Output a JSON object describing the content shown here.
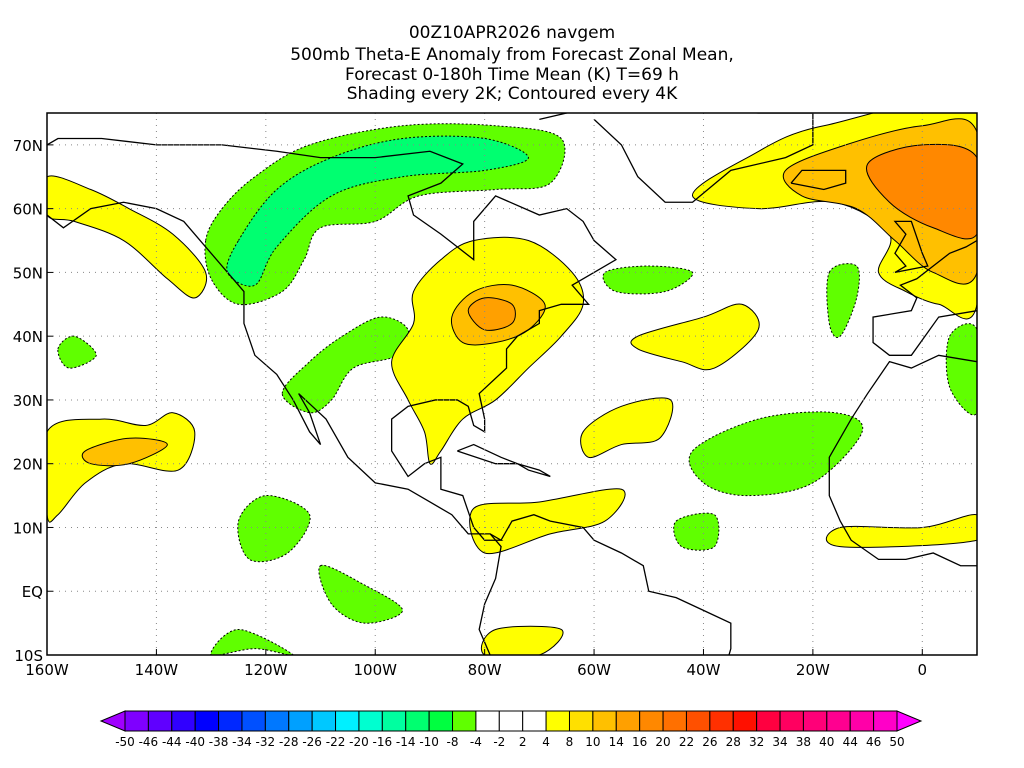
{
  "title": {
    "line1": "00Z10APR2026 navgem",
    "line2": "500mb Theta-E Anomaly from Forecast Zonal Mean,",
    "line3": "Forecast 0-180h Time Mean (K) T=69 h",
    "line4": "Shading every 2K; Contoured every 4K"
  },
  "chart_data": {
    "type": "heatmap",
    "variable": "500mb Theta-E Anomaly (K)",
    "xlim": [
      -160,
      10
    ],
    "ylim": [
      -10,
      75
    ],
    "grid": true,
    "x_ticks": [
      {
        "v": -160,
        "label": "160W"
      },
      {
        "v": -140,
        "label": "140W"
      },
      {
        "v": -120,
        "label": "120W"
      },
      {
        "v": -100,
        "label": "100W"
      },
      {
        "v": -80,
        "label": "80W"
      },
      {
        "v": -60,
        "label": "60W"
      },
      {
        "v": -40,
        "label": "40W"
      },
      {
        "v": -20,
        "label": "20W"
      },
      {
        "v": 0,
        "label": "0"
      }
    ],
    "y_ticks": [
      {
        "v": -10,
        "label": "10S"
      },
      {
        "v": 0,
        "label": "EQ"
      },
      {
        "v": 10,
        "label": "10N"
      },
      {
        "v": 20,
        "label": "20N"
      },
      {
        "v": 30,
        "label": "30N"
      },
      {
        "v": 40,
        "label": "40N"
      },
      {
        "v": 50,
        "label": "50N"
      },
      {
        "v": 60,
        "label": "60N"
      },
      {
        "v": 70,
        "label": "70N"
      }
    ],
    "colorbar": {
      "labels": [
        "-50",
        "-46",
        "-44",
        "-40",
        "-38",
        "-34",
        "-32",
        "-28",
        "-26",
        "-22",
        "-20",
        "-16",
        "-14",
        "-10",
        "-8",
        "-4",
        "-2",
        "2",
        "4",
        "8",
        "10",
        "14",
        "16",
        "20",
        "22",
        "26",
        "28",
        "32",
        "34",
        "38",
        "40",
        "44",
        "46",
        "50"
      ],
      "colors": [
        "#7f00ff",
        "#6000ff",
        "#3000ff",
        "#0000ff",
        "#0028ff",
        "#0050ff",
        "#0078ff",
        "#00a0ff",
        "#00c8ff",
        "#00f0ff",
        "#00ffd0",
        "#00ffa0",
        "#00ff70",
        "#00ff40",
        "#60ff00",
        "#ffffff",
        "#ffffff",
        "#ffffff",
        "#ffff00",
        "#ffe000",
        "#ffc000",
        "#ffa000",
        "#ff8800",
        "#ff7000",
        "#ff5000",
        "#ff3000",
        "#ff1000",
        "#ff0040",
        "#ff0060",
        "#ff0078",
        "#ff0090",
        "#ff00a8",
        "#ff00c8"
      ],
      "low_color": "#a000ff",
      "high_color": "#ff00ff"
    },
    "regions": [
      {
        "name": "canada-negative",
        "color": "#60ff00",
        "pts": [
          [
            -131,
            55
          ],
          [
            -128,
            60
          ],
          [
            -122,
            65
          ],
          [
            -112,
            70
          ],
          [
            -95,
            73
          ],
          [
            -78,
            73
          ],
          [
            -66,
            71
          ],
          [
            -68,
            64
          ],
          [
            -78,
            63
          ],
          [
            -92,
            62
          ],
          [
            -100,
            58
          ],
          [
            -110,
            57
          ],
          [
            -113,
            52
          ],
          [
            -117,
            47
          ],
          [
            -125,
            45
          ],
          [
            -130,
            49
          ]
        ]
      },
      {
        "name": "canada-negative-core",
        "color": "#00ff70",
        "pts": [
          [
            -125,
            55
          ],
          [
            -118,
            63
          ],
          [
            -108,
            68
          ],
          [
            -95,
            71
          ],
          [
            -80,
            71
          ],
          [
            -72,
            68
          ],
          [
            -80,
            66
          ],
          [
            -95,
            65
          ],
          [
            -108,
            62
          ],
          [
            -118,
            54
          ],
          [
            -122,
            48
          ],
          [
            -127,
            50
          ]
        ]
      },
      {
        "name": "alaska-gulf-positive",
        "color": "#ffff00",
        "pts": [
          [
            -160,
            65
          ],
          [
            -152,
            63
          ],
          [
            -145,
            60
          ],
          [
            -137,
            56
          ],
          [
            -131,
            50
          ],
          [
            -133,
            46
          ],
          [
            -138,
            49
          ],
          [
            -146,
            55
          ],
          [
            -155,
            58
          ],
          [
            -160,
            59
          ]
        ]
      },
      {
        "name": "central-us-negative",
        "color": "#60ff00",
        "pts": [
          [
            -117,
            31
          ],
          [
            -112,
            36
          ],
          [
            -106,
            40
          ],
          [
            -99,
            43
          ],
          [
            -94,
            41
          ],
          [
            -96,
            37
          ],
          [
            -104,
            35
          ],
          [
            -108,
            30
          ],
          [
            -112,
            28
          ]
        ]
      },
      {
        "name": "east-us-positive",
        "color": "#ffff00",
        "pts": [
          [
            -88,
            52
          ],
          [
            -82,
            55
          ],
          [
            -72,
            55
          ],
          [
            -64,
            50
          ],
          [
            -62,
            45
          ],
          [
            -66,
            40
          ],
          [
            -72,
            35
          ],
          [
            -78,
            30
          ],
          [
            -84,
            27
          ],
          [
            -88,
            22
          ],
          [
            -90,
            20
          ],
          [
            -91,
            25
          ],
          [
            -94,
            30
          ],
          [
            -97,
            36
          ],
          [
            -93,
            42
          ],
          [
            -93,
            47
          ]
        ]
      },
      {
        "name": "great-lakes-positive-core",
        "color": "#ffc000",
        "pts": [
          [
            -86,
            43
          ],
          [
            -82,
            47
          ],
          [
            -75,
            48
          ],
          [
            -69,
            45
          ],
          [
            -72,
            41
          ],
          [
            -78,
            39
          ],
          [
            -84,
            39
          ]
        ]
      },
      {
        "name": "great-lakes-positive-max",
        "color": "#ffa000",
        "pts": [
          [
            -83,
            44
          ],
          [
            -80,
            46
          ],
          [
            -75,
            45
          ],
          [
            -75,
            42
          ],
          [
            -80,
            41
          ]
        ]
      },
      {
        "name": "europe-positive",
        "color": "#ffff00",
        "pts": [
          [
            -42,
            62
          ],
          [
            -32,
            68
          ],
          [
            -18,
            73
          ],
          [
            10,
            75
          ],
          [
            10,
            45
          ],
          [
            3,
            45
          ],
          [
            -3,
            47
          ],
          [
            -8,
            50
          ],
          [
            -6,
            56
          ],
          [
            -16,
            61
          ],
          [
            -30,
            60
          ]
        ]
      },
      {
        "name": "europe-positive-core",
        "color": "#ffc000",
        "pts": [
          [
            -25,
            66
          ],
          [
            -14,
            70
          ],
          [
            0,
            73
          ],
          [
            10,
            72
          ],
          [
            10,
            50
          ],
          [
            2,
            50
          ],
          [
            -5,
            55
          ],
          [
            -12,
            60
          ],
          [
            -22,
            62
          ]
        ]
      },
      {
        "name": "europe-positive-max",
        "color": "#ff8800",
        "pts": [
          [
            -10,
            67
          ],
          [
            0,
            70
          ],
          [
            10,
            68
          ],
          [
            10,
            56
          ],
          [
            2,
            57
          ],
          [
            -6,
            61
          ]
        ]
      },
      {
        "name": "pacific-positive",
        "color": "#ffff00",
        "pts": [
          [
            -160,
            25
          ],
          [
            -150,
            27
          ],
          [
            -142,
            26
          ],
          [
            -137,
            28
          ],
          [
            -133,
            25
          ],
          [
            -136,
            19
          ],
          [
            -146,
            20
          ],
          [
            -153,
            17
          ],
          [
            -158,
            12
          ],
          [
            -160,
            12
          ]
        ]
      },
      {
        "name": "pacific-positive-core",
        "color": "#ffc000",
        "pts": [
          [
            -153,
            22
          ],
          [
            -145,
            24
          ],
          [
            -138,
            23
          ],
          [
            -145,
            20
          ],
          [
            -152,
            20
          ]
        ]
      },
      {
        "name": "atlantic-negative",
        "color": "#60ff00",
        "pts": [
          [
            -58,
            50
          ],
          [
            -50,
            51
          ],
          [
            -42,
            50
          ],
          [
            -47,
            47
          ],
          [
            -56,
            47
          ]
        ]
      },
      {
        "name": "atlantic-positive-north",
        "color": "#ffff00",
        "pts": [
          [
            -52,
            40
          ],
          [
            -40,
            43
          ],
          [
            -33,
            45
          ],
          [
            -30,
            41
          ],
          [
            -38,
            35
          ],
          [
            -44,
            36
          ],
          [
            -52,
            38
          ]
        ]
      },
      {
        "name": "atlantic-positive-south",
        "color": "#ffff00",
        "pts": [
          [
            -62,
            25
          ],
          [
            -55,
            29
          ],
          [
            -46,
            30
          ],
          [
            -48,
            24
          ],
          [
            -55,
            23
          ],
          [
            -61,
            21
          ]
        ]
      },
      {
        "name": "africa-coast-negative",
        "color": "#60ff00",
        "pts": [
          [
            -42,
            22
          ],
          [
            -30,
            27
          ],
          [
            -16,
            28
          ],
          [
            -11,
            25
          ],
          [
            -20,
            17
          ],
          [
            -32,
            15
          ],
          [
            -40,
            17
          ]
        ]
      },
      {
        "name": "iberia-negative",
        "color": "#60ff00",
        "pts": [
          [
            -17,
            50
          ],
          [
            -12,
            51
          ],
          [
            -12,
            46
          ],
          [
            -15,
            40
          ],
          [
            -17,
            42
          ]
        ]
      },
      {
        "name": "med-negative",
        "color": "#60ff00",
        "pts": [
          [
            5,
            40
          ],
          [
            10,
            41
          ],
          [
            10,
            28
          ],
          [
            5,
            32
          ]
        ]
      },
      {
        "name": "caribbean-positive",
        "color": "#ffff00",
        "pts": [
          [
            -82,
            13
          ],
          [
            -70,
            14
          ],
          [
            -55,
            16
          ],
          [
            -58,
            11
          ],
          [
            -68,
            9
          ],
          [
            -80,
            6
          ]
        ]
      },
      {
        "name": "west-africa-positive",
        "color": "#ffff00",
        "pts": [
          [
            -15,
            10
          ],
          [
            0,
            10
          ],
          [
            10,
            12
          ],
          [
            10,
            8
          ],
          [
            -15,
            7
          ]
        ]
      },
      {
        "name": "pacific-negative-1",
        "color": "#60ff00",
        "pts": [
          [
            -125,
            11
          ],
          [
            -120,
            15
          ],
          [
            -112,
            12
          ],
          [
            -116,
            6
          ],
          [
            -123,
            5
          ]
        ]
      },
      {
        "name": "pacific-negative-2",
        "color": "#60ff00",
        "pts": [
          [
            -110,
            4
          ],
          [
            -102,
            1
          ],
          [
            -95,
            -3
          ],
          [
            -102,
            -5
          ],
          [
            -108,
            -2
          ]
        ]
      },
      {
        "name": "pacific-negative-3",
        "color": "#60ff00",
        "pts": [
          [
            -130,
            -10
          ],
          [
            -122,
            -9
          ],
          [
            -115,
            -10
          ],
          [
            -125,
            -6
          ]
        ]
      },
      {
        "name": "pacific-negative-4",
        "color": "#60ff00",
        "pts": [
          [
            -158,
            38
          ],
          [
            -155,
            40
          ],
          [
            -151,
            37
          ],
          [
            -156,
            35
          ]
        ]
      },
      {
        "name": "atlantic-negative-2",
        "color": "#60ff00",
        "pts": [
          [
            -45,
            11
          ],
          [
            -38,
            12
          ],
          [
            -38,
            7
          ],
          [
            -44,
            7
          ]
        ]
      },
      {
        "name": "south-america-positive",
        "color": "#ffff00",
        "pts": [
          [
            -80,
            -10
          ],
          [
            -70,
            -10
          ],
          [
            -66,
            -6
          ],
          [
            -78,
            -6
          ]
        ]
      }
    ]
  }
}
